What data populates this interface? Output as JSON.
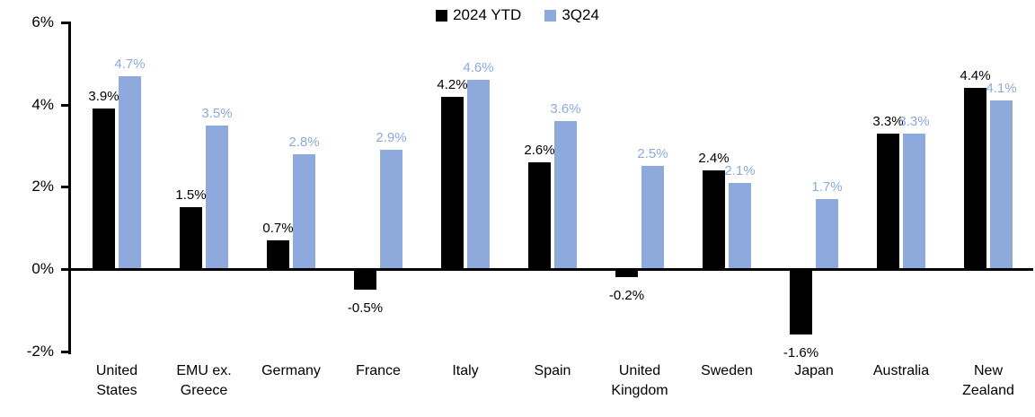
{
  "chart_data": {
    "type": "bar",
    "title": "",
    "categories": [
      "United States",
      "EMU ex. Greece",
      "Germany",
      "France",
      "Italy",
      "Spain",
      "United Kingdom",
      "Sweden",
      "Japan",
      "Australia",
      "New Zealand"
    ],
    "series": [
      {
        "name": "2024 YTD",
        "color": "#000000",
        "values": [
          3.9,
          1.5,
          0.7,
          -0.5,
          4.2,
          2.6,
          -0.2,
          2.4,
          -1.6,
          3.3,
          4.4
        ],
        "labels": [
          "3.9%",
          "1.5%",
          "0.7%",
          "-0.5%",
          "4.2%",
          "2.6%",
          "-0.2%",
          "2.4%",
          "-1.6%",
          "3.3%",
          "4.4%"
        ]
      },
      {
        "name": "3Q24",
        "color": "#8EA9DB",
        "values": [
          4.7,
          3.5,
          2.8,
          2.9,
          4.6,
          3.6,
          2.5,
          2.1,
          1.7,
          3.3,
          4.1
        ],
        "labels": [
          "4.7%",
          "3.5%",
          "2.8%",
          "2.9%",
          "4.6%",
          "3.6%",
          "2.5%",
          "2.1%",
          "1.7%",
          "3.3%",
          "4.1%"
        ]
      }
    ],
    "y_axis": {
      "min": -2,
      "max": 6,
      "tick_step": 2,
      "ticks": [
        {
          "value": 6,
          "label": "6%"
        },
        {
          "value": 4,
          "label": "4%"
        },
        {
          "value": 2,
          "label": "2%"
        },
        {
          "value": 0,
          "label": "0%"
        },
        {
          "value": -2,
          "label": "-2%"
        }
      ]
    },
    "legend_position": "top-center",
    "grid": false,
    "data_label_colors": {
      "2024 YTD": "#000000",
      "3Q24": "#8EA9DB"
    }
  }
}
